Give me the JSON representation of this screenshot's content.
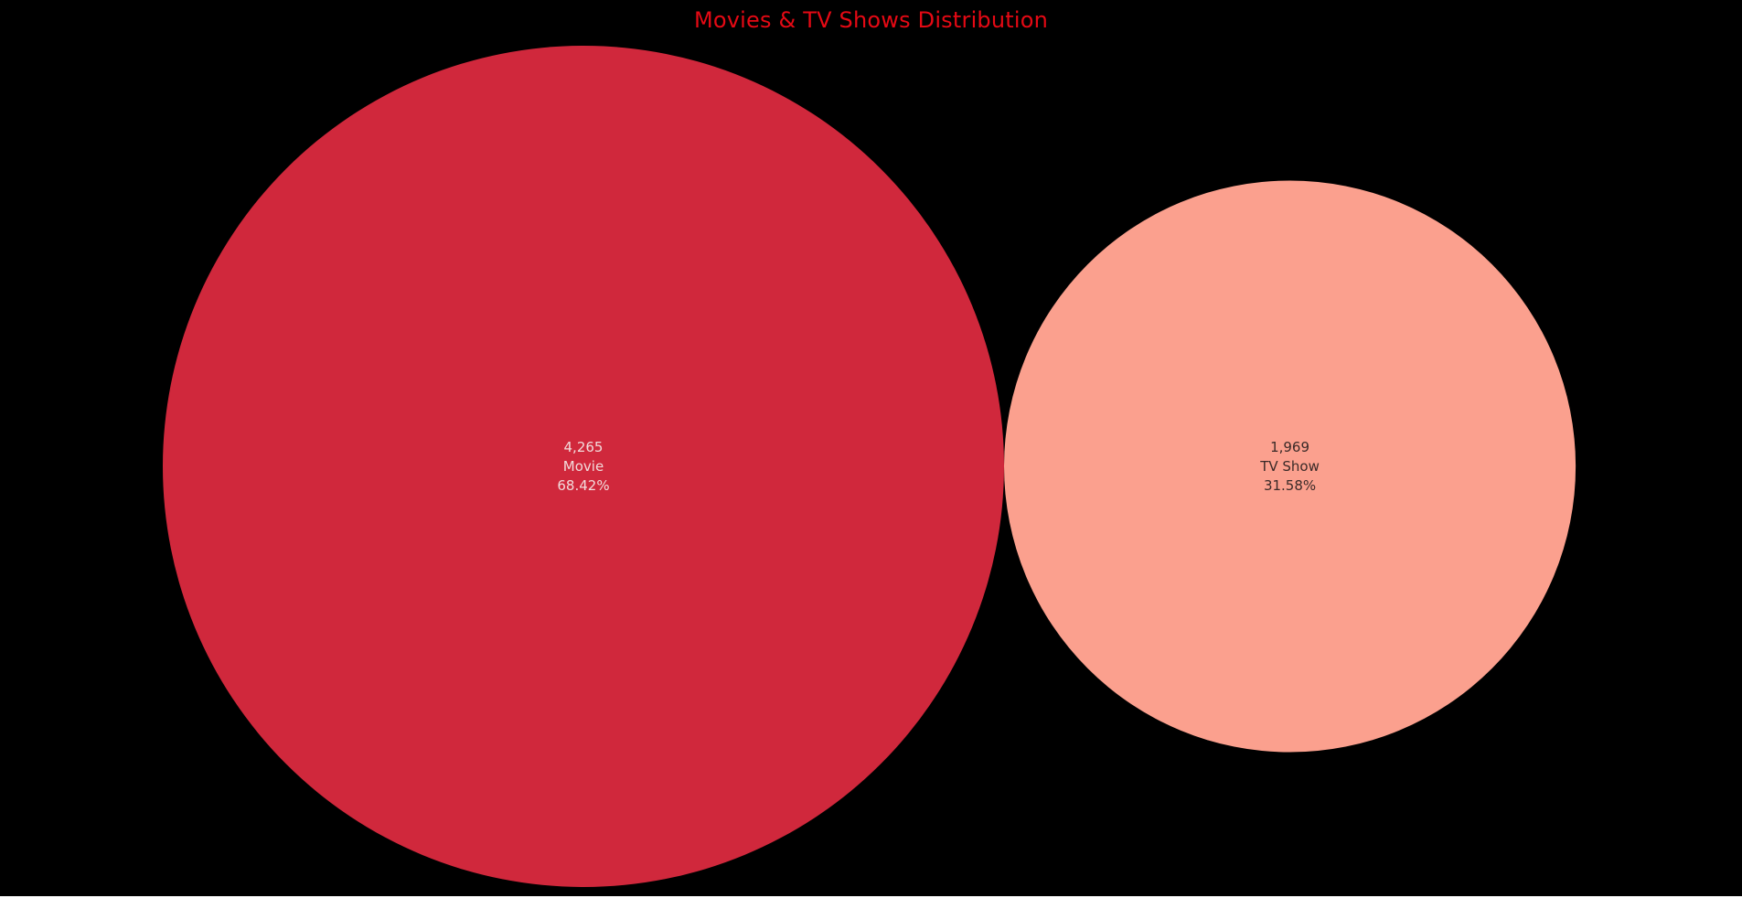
{
  "chart_data": {
    "type": "bubble",
    "title": "Movies & TV Shows Distribution",
    "categories": [
      "Movie",
      "TV Show"
    ],
    "values": [
      4265,
      1969
    ],
    "value_labels": [
      "4,265",
      "1,969"
    ],
    "percent_labels": [
      "68.42%",
      "31.58%"
    ],
    "colors": [
      "#d0283c",
      "#fba08e"
    ],
    "label_colors": [
      "#f2dcdc",
      "#3a2a28"
    ],
    "background": "#000000",
    "title_color": "#e50914"
  }
}
